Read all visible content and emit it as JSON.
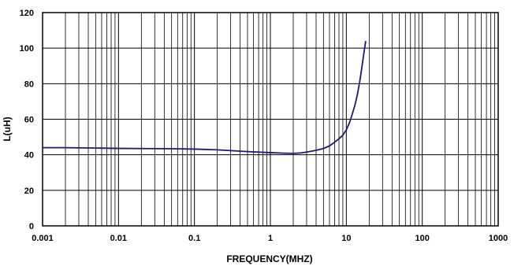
{
  "chart_data": {
    "type": "line",
    "title": "",
    "xlabel": "FREQUENCY(MHZ)",
    "ylabel": "L(uH)",
    "x_scale": "log",
    "xlim": [
      0.001,
      1000
    ],
    "ylim": [
      0,
      120
    ],
    "x_ticks": [
      "0.001",
      "0.01",
      "0.1",
      "1",
      "10",
      "100",
      "1000"
    ],
    "y_ticks": [
      "0",
      "20",
      "40",
      "60",
      "80",
      "100",
      "120"
    ],
    "grid": true,
    "legend": "none",
    "series": [
      {
        "color": "#1a1a7a",
        "x": [
          0.001,
          0.002,
          0.005,
          0.01,
          0.02,
          0.05,
          0.1,
          0.2,
          0.5,
          1,
          1.5,
          2,
          2.5,
          3,
          4,
          5,
          6,
          7,
          8,
          9,
          10,
          11,
          12,
          13,
          14,
          15,
          16,
          17,
          18
        ],
        "y": [
          44,
          44,
          43.8,
          43.6,
          43.5,
          43.4,
          43.2,
          42.8,
          41.8,
          41.2,
          40.9,
          40.8,
          41,
          41.5,
          42.5,
          43.5,
          45,
          47,
          49,
          51,
          54,
          58,
          63,
          68,
          74,
          81,
          89,
          97,
          104
        ]
      }
    ]
  }
}
